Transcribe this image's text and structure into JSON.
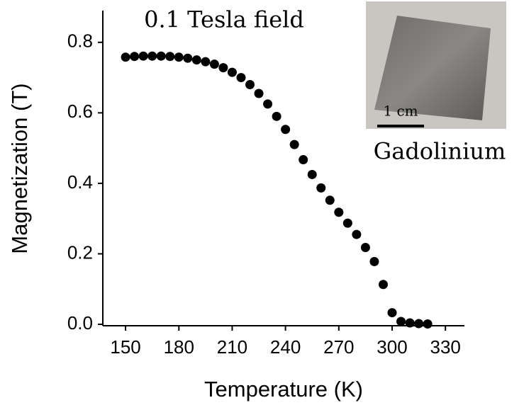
{
  "chart_data": {
    "type": "scatter",
    "title": "0.1 Tesla field",
    "x_label": "Temperature (K)",
    "y_label": "Magnetization (T)",
    "inset_scale_label": "1 cm",
    "inset_label": "Gadolinium",
    "color": "#000000",
    "x": [
      150,
      155,
      160,
      165,
      170,
      175,
      180,
      185,
      190,
      195,
      200,
      205,
      210,
      215,
      220,
      225,
      230,
      235,
      240,
      245,
      250,
      255,
      260,
      265,
      270,
      275,
      280,
      285,
      290,
      295,
      300,
      305,
      310,
      315,
      320
    ],
    "values": [
      0.758,
      0.76,
      0.761,
      0.761,
      0.761,
      0.76,
      0.758,
      0.755,
      0.75,
      0.745,
      0.738,
      0.728,
      0.715,
      0.7,
      0.68,
      0.655,
      0.625,
      0.59,
      0.553,
      0.51,
      0.467,
      0.425,
      0.387,
      0.352,
      0.318,
      0.287,
      0.255,
      0.218,
      0.178,
      0.113,
      0.033,
      0.008,
      0.004,
      0.002,
      0.001
    ],
    "xlim": [
      137.2,
      340.7
    ],
    "ylim": [
      -0.004,
      0.89
    ],
    "xticks": [
      150,
      180,
      210,
      240,
      270,
      300,
      330
    ],
    "yticks": [
      {
        "value": 0,
        "label": "0.0"
      },
      0.2,
      0.4,
      0.6,
      0.8
    ]
  }
}
